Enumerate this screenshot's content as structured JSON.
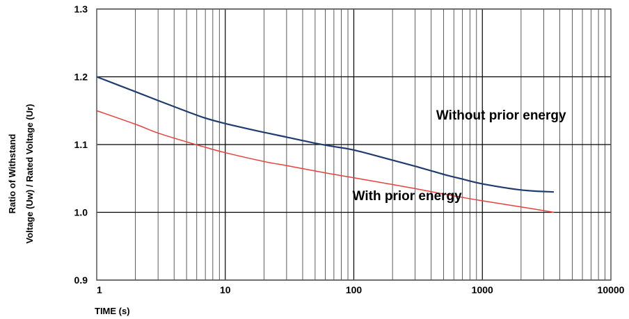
{
  "chart_data": {
    "type": "line",
    "xscale": "log",
    "xlim": [
      1,
      10000
    ],
    "ylim": [
      0.9,
      1.3
    ],
    "x_ticks": [
      "1",
      "10",
      "100",
      "1000",
      "10000"
    ],
    "y_ticks": [
      "0.9",
      "1.0",
      "1.1",
      "1.2",
      "1.3"
    ],
    "xlabel": "TIME (s)",
    "ylabel_line1": "Ratio of Withstand",
    "ylabel_line2": "Voltage (Uw) / Rated Voltage (Ur)",
    "grid": true,
    "series": [
      {
        "name": "Without prior energy",
        "color": "#1f3c6e",
        "x": [
          1,
          2,
          3,
          5,
          7,
          10,
          20,
          30,
          50,
          70,
          100,
          200,
          300,
          500,
          700,
          1000,
          2000,
          3600
        ],
        "y": [
          1.2,
          1.178,
          1.165,
          1.149,
          1.139,
          1.131,
          1.118,
          1.111,
          1.102,
          1.097,
          1.092,
          1.077,
          1.068,
          1.056,
          1.049,
          1.042,
          1.033,
          1.03
        ]
      },
      {
        "name": "With prior energy",
        "color": "#e8413c",
        "x": [
          1,
          2,
          3,
          5,
          7,
          10,
          20,
          30,
          50,
          70,
          100,
          200,
          300,
          500,
          700,
          1000,
          2000,
          3600
        ],
        "y": [
          1.15,
          1.13,
          1.117,
          1.104,
          1.096,
          1.088,
          1.075,
          1.069,
          1.061,
          1.056,
          1.051,
          1.041,
          1.035,
          1.027,
          1.022,
          1.017,
          1.008,
          1.0
        ]
      }
    ],
    "annotations": [
      {
        "text": "Without prior energy",
        "x": 1400,
        "y": 1.137
      },
      {
        "text": "With prior energy",
        "x": 260,
        "y": 1.018
      }
    ]
  }
}
